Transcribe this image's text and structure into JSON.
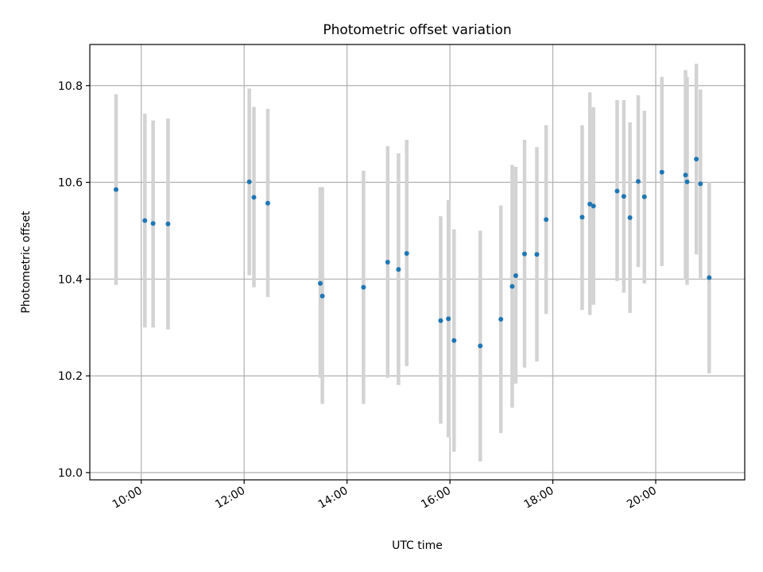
{
  "chart_data": {
    "type": "scatter",
    "title": "Photometric offset variation",
    "xlabel": "UTC time",
    "ylabel": "Photometric offset",
    "x_unit": "hours UTC",
    "xlim": [
      9.0,
      21.73
    ],
    "ylim": [
      9.985,
      10.885
    ],
    "x_ticks": [
      {
        "value": 10,
        "label": "10:00"
      },
      {
        "value": 12,
        "label": "12:00"
      },
      {
        "value": 14,
        "label": "14:00"
      },
      {
        "value": 16,
        "label": "16:00"
      },
      {
        "value": 18,
        "label": "18:00"
      },
      {
        "value": 20,
        "label": "20:00"
      }
    ],
    "y_ticks": [
      {
        "value": 10.0,
        "label": "10.0"
      },
      {
        "value": 10.2,
        "label": "10.2"
      },
      {
        "value": 10.4,
        "label": "10.4"
      },
      {
        "value": 10.6,
        "label": "10.6"
      },
      {
        "value": 10.8,
        "label": "10.8"
      }
    ],
    "grid": true,
    "point_color": "#1f77b4",
    "errorbar_color": "#d3d3d3",
    "points": [
      {
        "x": 9.51,
        "y": 10.585,
        "lo": 10.388,
        "hi": 10.782
      },
      {
        "x": 10.07,
        "y": 10.521,
        "lo": 10.3,
        "hi": 10.742
      },
      {
        "x": 10.23,
        "y": 10.515,
        "lo": 10.3,
        "hi": 10.728
      },
      {
        "x": 10.52,
        "y": 10.514,
        "lo": 10.296,
        "hi": 10.732
      },
      {
        "x": 12.1,
        "y": 10.601,
        "lo": 10.408,
        "hi": 10.794
      },
      {
        "x": 12.19,
        "y": 10.569,
        "lo": 10.383,
        "hi": 10.756
      },
      {
        "x": 12.46,
        "y": 10.557,
        "lo": 10.363,
        "hi": 10.752
      },
      {
        "x": 13.48,
        "y": 10.391,
        "lo": 10.196,
        "hi": 10.59
      },
      {
        "x": 13.52,
        "y": 10.365,
        "lo": 10.142,
        "hi": 10.59
      },
      {
        "x": 14.32,
        "y": 10.383,
        "lo": 10.142,
        "hi": 10.624
      },
      {
        "x": 14.79,
        "y": 10.435,
        "lo": 10.196,
        "hi": 10.675
      },
      {
        "x": 15.0,
        "y": 10.42,
        "lo": 10.181,
        "hi": 10.66
      },
      {
        "x": 15.16,
        "y": 10.453,
        "lo": 10.22,
        "hi": 10.688
      },
      {
        "x": 15.82,
        "y": 10.314,
        "lo": 10.101,
        "hi": 10.53
      },
      {
        "x": 15.97,
        "y": 10.318,
        "lo": 10.073,
        "hi": 10.563
      },
      {
        "x": 16.08,
        "y": 10.273,
        "lo": 10.043,
        "hi": 10.503
      },
      {
        "x": 16.59,
        "y": 10.262,
        "lo": 10.023,
        "hi": 10.5
      },
      {
        "x": 16.99,
        "y": 10.317,
        "lo": 10.082,
        "hi": 10.552
      },
      {
        "x": 17.21,
        "y": 10.385,
        "lo": 10.134,
        "hi": 10.636
      },
      {
        "x": 17.28,
        "y": 10.407,
        "lo": 10.184,
        "hi": 10.632
      },
      {
        "x": 17.45,
        "y": 10.452,
        "lo": 10.217,
        "hi": 10.688
      },
      {
        "x": 17.69,
        "y": 10.451,
        "lo": 10.23,
        "hi": 10.673
      },
      {
        "x": 17.87,
        "y": 10.523,
        "lo": 10.328,
        "hi": 10.718
      },
      {
        "x": 18.57,
        "y": 10.528,
        "lo": 10.336,
        "hi": 10.718
      },
      {
        "x": 18.72,
        "y": 10.555,
        "lo": 10.326,
        "hi": 10.786
      },
      {
        "x": 18.79,
        "y": 10.551,
        "lo": 10.347,
        "hi": 10.755
      },
      {
        "x": 19.25,
        "y": 10.582,
        "lo": 10.396,
        "hi": 10.77
      },
      {
        "x": 19.38,
        "y": 10.571,
        "lo": 10.372,
        "hi": 10.77
      },
      {
        "x": 19.5,
        "y": 10.527,
        "lo": 10.33,
        "hi": 10.724
      },
      {
        "x": 19.66,
        "y": 10.602,
        "lo": 10.425,
        "hi": 10.78
      },
      {
        "x": 19.78,
        "y": 10.57,
        "lo": 10.391,
        "hi": 10.748
      },
      {
        "x": 20.12,
        "y": 10.621,
        "lo": 10.427,
        "hi": 10.818
      },
      {
        "x": 20.58,
        "y": 10.615,
        "lo": 10.399,
        "hi": 10.832
      },
      {
        "x": 20.61,
        "y": 10.601,
        "lo": 10.388,
        "hi": 10.818
      },
      {
        "x": 20.79,
        "y": 10.648,
        "lo": 10.451,
        "hi": 10.845
      },
      {
        "x": 20.87,
        "y": 10.597,
        "lo": 10.402,
        "hi": 10.792
      },
      {
        "x": 21.04,
        "y": 10.403,
        "lo": 10.205,
        "hi": 10.601
      }
    ]
  }
}
